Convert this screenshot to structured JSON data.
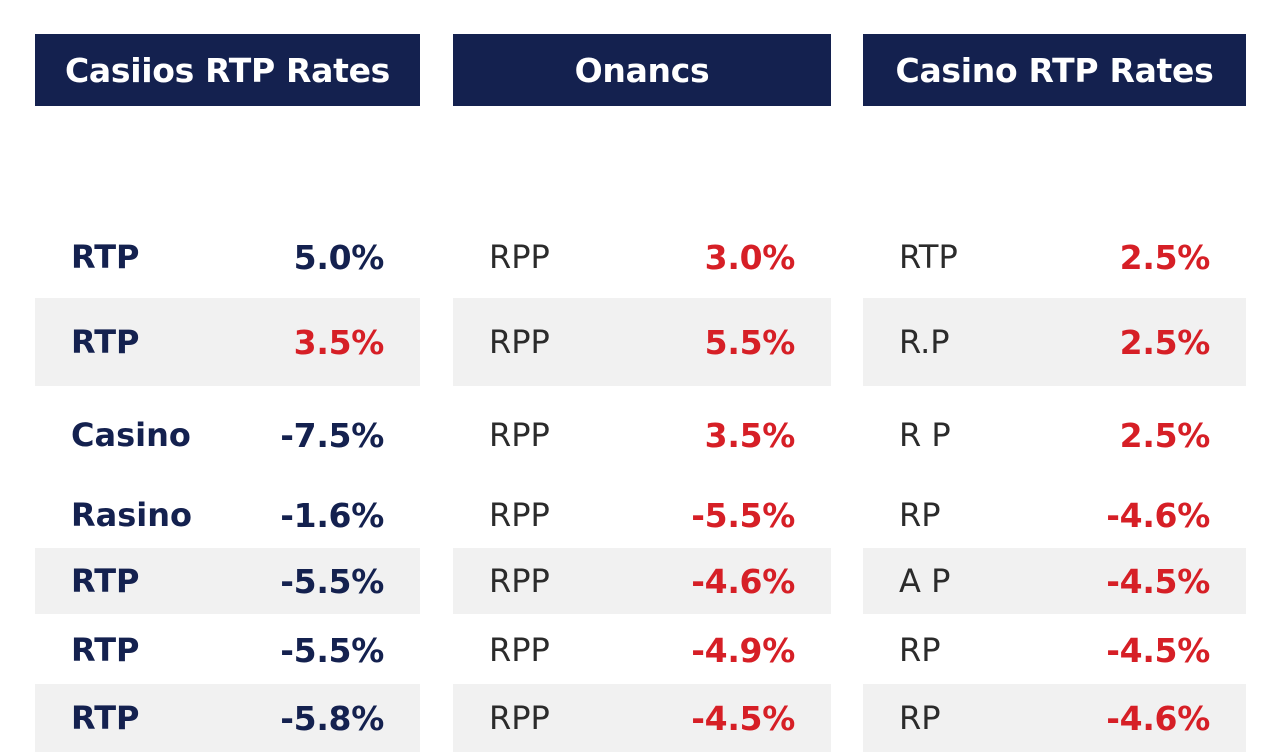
{
  "panels": [
    {
      "title": "Casiios RTP Rates",
      "rows": [
        {
          "label": "RTP",
          "value": "5.0%",
          "color": "#14214f"
        },
        {
          "label": "RTP",
          "value": "3.5%",
          "color": "#d61f26"
        },
        {
          "label": "Casino",
          "value": "-7.5%",
          "color": "#14214f"
        },
        {
          "label": "Rasino",
          "value": "-1.6%",
          "color": "#14214f"
        },
        {
          "label": "RTP",
          "value": "-5.5%",
          "color": "#14214f"
        },
        {
          "label": "RTP",
          "value": "-5.5%",
          "color": "#14214f"
        },
        {
          "label": "RTP",
          "value": "-5.8%",
          "color": "#14214f"
        }
      ]
    },
    {
      "title": "Onancs",
      "rows": [
        {
          "label": "RPP",
          "value": "3.0%",
          "color": "#d61f26"
        },
        {
          "label": "RPP",
          "value": "5.5%",
          "color": "#d61f26"
        },
        {
          "label": "RPP",
          "value": "3.5%",
          "color": "#d61f26"
        },
        {
          "label": "RPP",
          "value": "-5.5%",
          "color": "#d61f26"
        },
        {
          "label": "RPP",
          "value": "-4.6%",
          "color": "#d61f26"
        },
        {
          "label": "RPP",
          "value": "-4.9%",
          "color": "#d61f26"
        },
        {
          "label": "RPP",
          "value": "-4.5%",
          "color": "#d61f26"
        }
      ]
    },
    {
      "title": "Casino RTP Rates",
      "rows": [
        {
          "label": "RTP",
          "value": "2.5%",
          "color": "#d61f26"
        },
        {
          "label": "R.P",
          "value": "2.5%",
          "color": "#d61f26"
        },
        {
          "label": "R P",
          "value": "2.5%",
          "color": "#d61f26"
        },
        {
          "label": "RP",
          "value": "-4.6%",
          "color": "#d61f26"
        },
        {
          "label": "A P",
          "value": "-4.5%",
          "color": "#d61f26"
        },
        {
          "label": "RP",
          "value": "-4.5%",
          "color": "#d61f26"
        },
        {
          "label": "RP",
          "value": "-4.6%",
          "color": "#d61f26"
        }
      ]
    }
  ]
}
